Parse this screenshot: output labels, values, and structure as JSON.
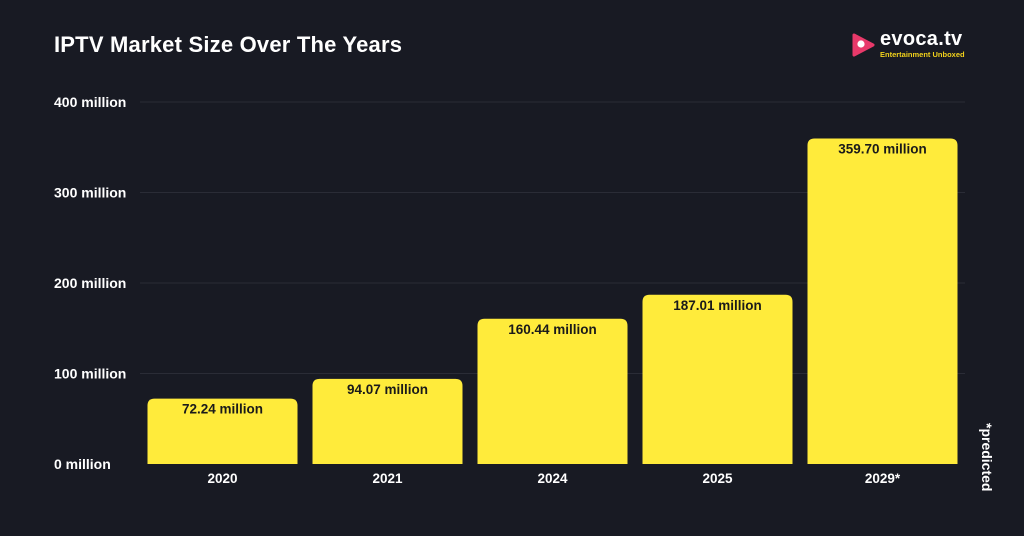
{
  "title": "IPTV Market Size Over The Years",
  "brand": {
    "name": "evoca.tv",
    "tagline": "Entertainment Unboxed",
    "icon": "play-icon",
    "accent": "#e8396a",
    "tag_color": "#f2d21b"
  },
  "note": "*predicted",
  "colors": {
    "background": "#181a23",
    "bar": "#ffeb3b",
    "grid": "#2a2c36",
    "text": "#ffffff",
    "bar_label": "#1a1a1a"
  },
  "chart_data": {
    "type": "bar",
    "categories": [
      "2020",
      "2021",
      "2024",
      "2025",
      "2029*"
    ],
    "values": [
      72.24,
      94.07,
      160.44,
      187.01,
      359.7
    ],
    "data_labels": [
      "72.24 million",
      "94.07 million",
      "160.44 million",
      "187.01 million",
      "359.70 million"
    ],
    "yticks": [
      0,
      100,
      200,
      300,
      400
    ],
    "ytick_labels": [
      "0 million",
      "100 million",
      "200 million",
      "300 million",
      "400 million"
    ],
    "ylim": [
      0,
      400
    ],
    "grid": true,
    "legend": "none"
  }
}
